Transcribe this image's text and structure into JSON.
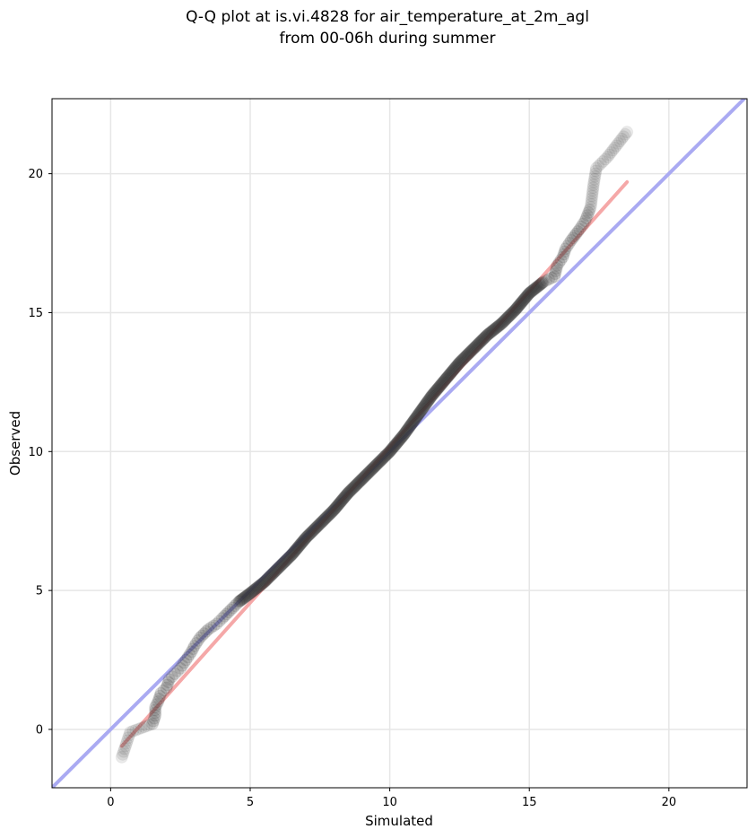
{
  "chart_data": {
    "type": "scatter",
    "title": "Q-Q plot at is.vi.4828 for air_temperature_at_2m_agl",
    "subtitle": "from 00-06h during summer",
    "xlabel": "Simulated",
    "ylabel": "Observed",
    "xlim": [
      -2.1,
      22.8
    ],
    "ylim": [
      -2.1,
      22.7
    ],
    "xticks": [
      0,
      5,
      10,
      15,
      20
    ],
    "yticks": [
      0,
      5,
      10,
      15,
      20
    ],
    "xtick_labels": [
      "0",
      "5",
      "10",
      "15",
      "20"
    ],
    "ytick_labels": [
      "0",
      "5",
      "10",
      "15",
      "20"
    ],
    "grid": true,
    "reference_line": {
      "slope": 1,
      "intercept": 0,
      "color": "#aaaaf2"
    },
    "fit_line": {
      "x": [
        0.4,
        18.5
      ],
      "y": [
        -0.6,
        19.7
      ],
      "color": "#f5a8a8"
    },
    "points": [
      [
        0.4,
        -1.0
      ],
      [
        0.7,
        -0.1
      ],
      [
        1.5,
        0.2
      ],
      [
        1.6,
        0.5
      ],
      [
        1.6,
        0.8
      ],
      [
        1.7,
        1.0
      ],
      [
        1.8,
        1.3
      ],
      [
        2.0,
        1.5
      ],
      [
        2.1,
        1.8
      ],
      [
        2.3,
        2.0
      ],
      [
        2.5,
        2.2
      ],
      [
        2.7,
        2.5
      ],
      [
        2.9,
        2.8
      ],
      [
        3.0,
        3.0
      ],
      [
        3.2,
        3.3
      ],
      [
        3.5,
        3.6
      ],
      [
        3.8,
        3.8
      ],
      [
        4.0,
        4.0
      ],
      [
        4.3,
        4.3
      ],
      [
        4.6,
        4.6
      ],
      [
        5.0,
        4.9
      ],
      [
        5.5,
        5.3
      ],
      [
        6.0,
        5.8
      ],
      [
        6.5,
        6.3
      ],
      [
        7.0,
        6.9
      ],
      [
        7.5,
        7.4
      ],
      [
        8.0,
        7.9
      ],
      [
        8.5,
        8.5
      ],
      [
        9.0,
        9.0
      ],
      [
        9.5,
        9.5
      ],
      [
        10.0,
        10.0
      ],
      [
        10.5,
        10.6
      ],
      [
        11.0,
        11.3
      ],
      [
        11.5,
        12.0
      ],
      [
        12.0,
        12.6
      ],
      [
        12.5,
        13.2
      ],
      [
        13.0,
        13.7
      ],
      [
        13.5,
        14.2
      ],
      [
        14.0,
        14.6
      ],
      [
        14.5,
        15.1
      ],
      [
        15.0,
        15.7
      ],
      [
        15.5,
        16.1
      ],
      [
        15.9,
        16.3
      ],
      [
        16.0,
        16.7
      ],
      [
        16.2,
        17.0
      ],
      [
        16.3,
        17.3
      ],
      [
        16.5,
        17.6
      ],
      [
        16.8,
        18.0
      ],
      [
        17.0,
        18.3
      ],
      [
        17.2,
        18.8
      ],
      [
        17.3,
        19.6
      ],
      [
        17.4,
        20.2
      ],
      [
        17.8,
        20.6
      ],
      [
        18.5,
        21.5
      ]
    ]
  }
}
